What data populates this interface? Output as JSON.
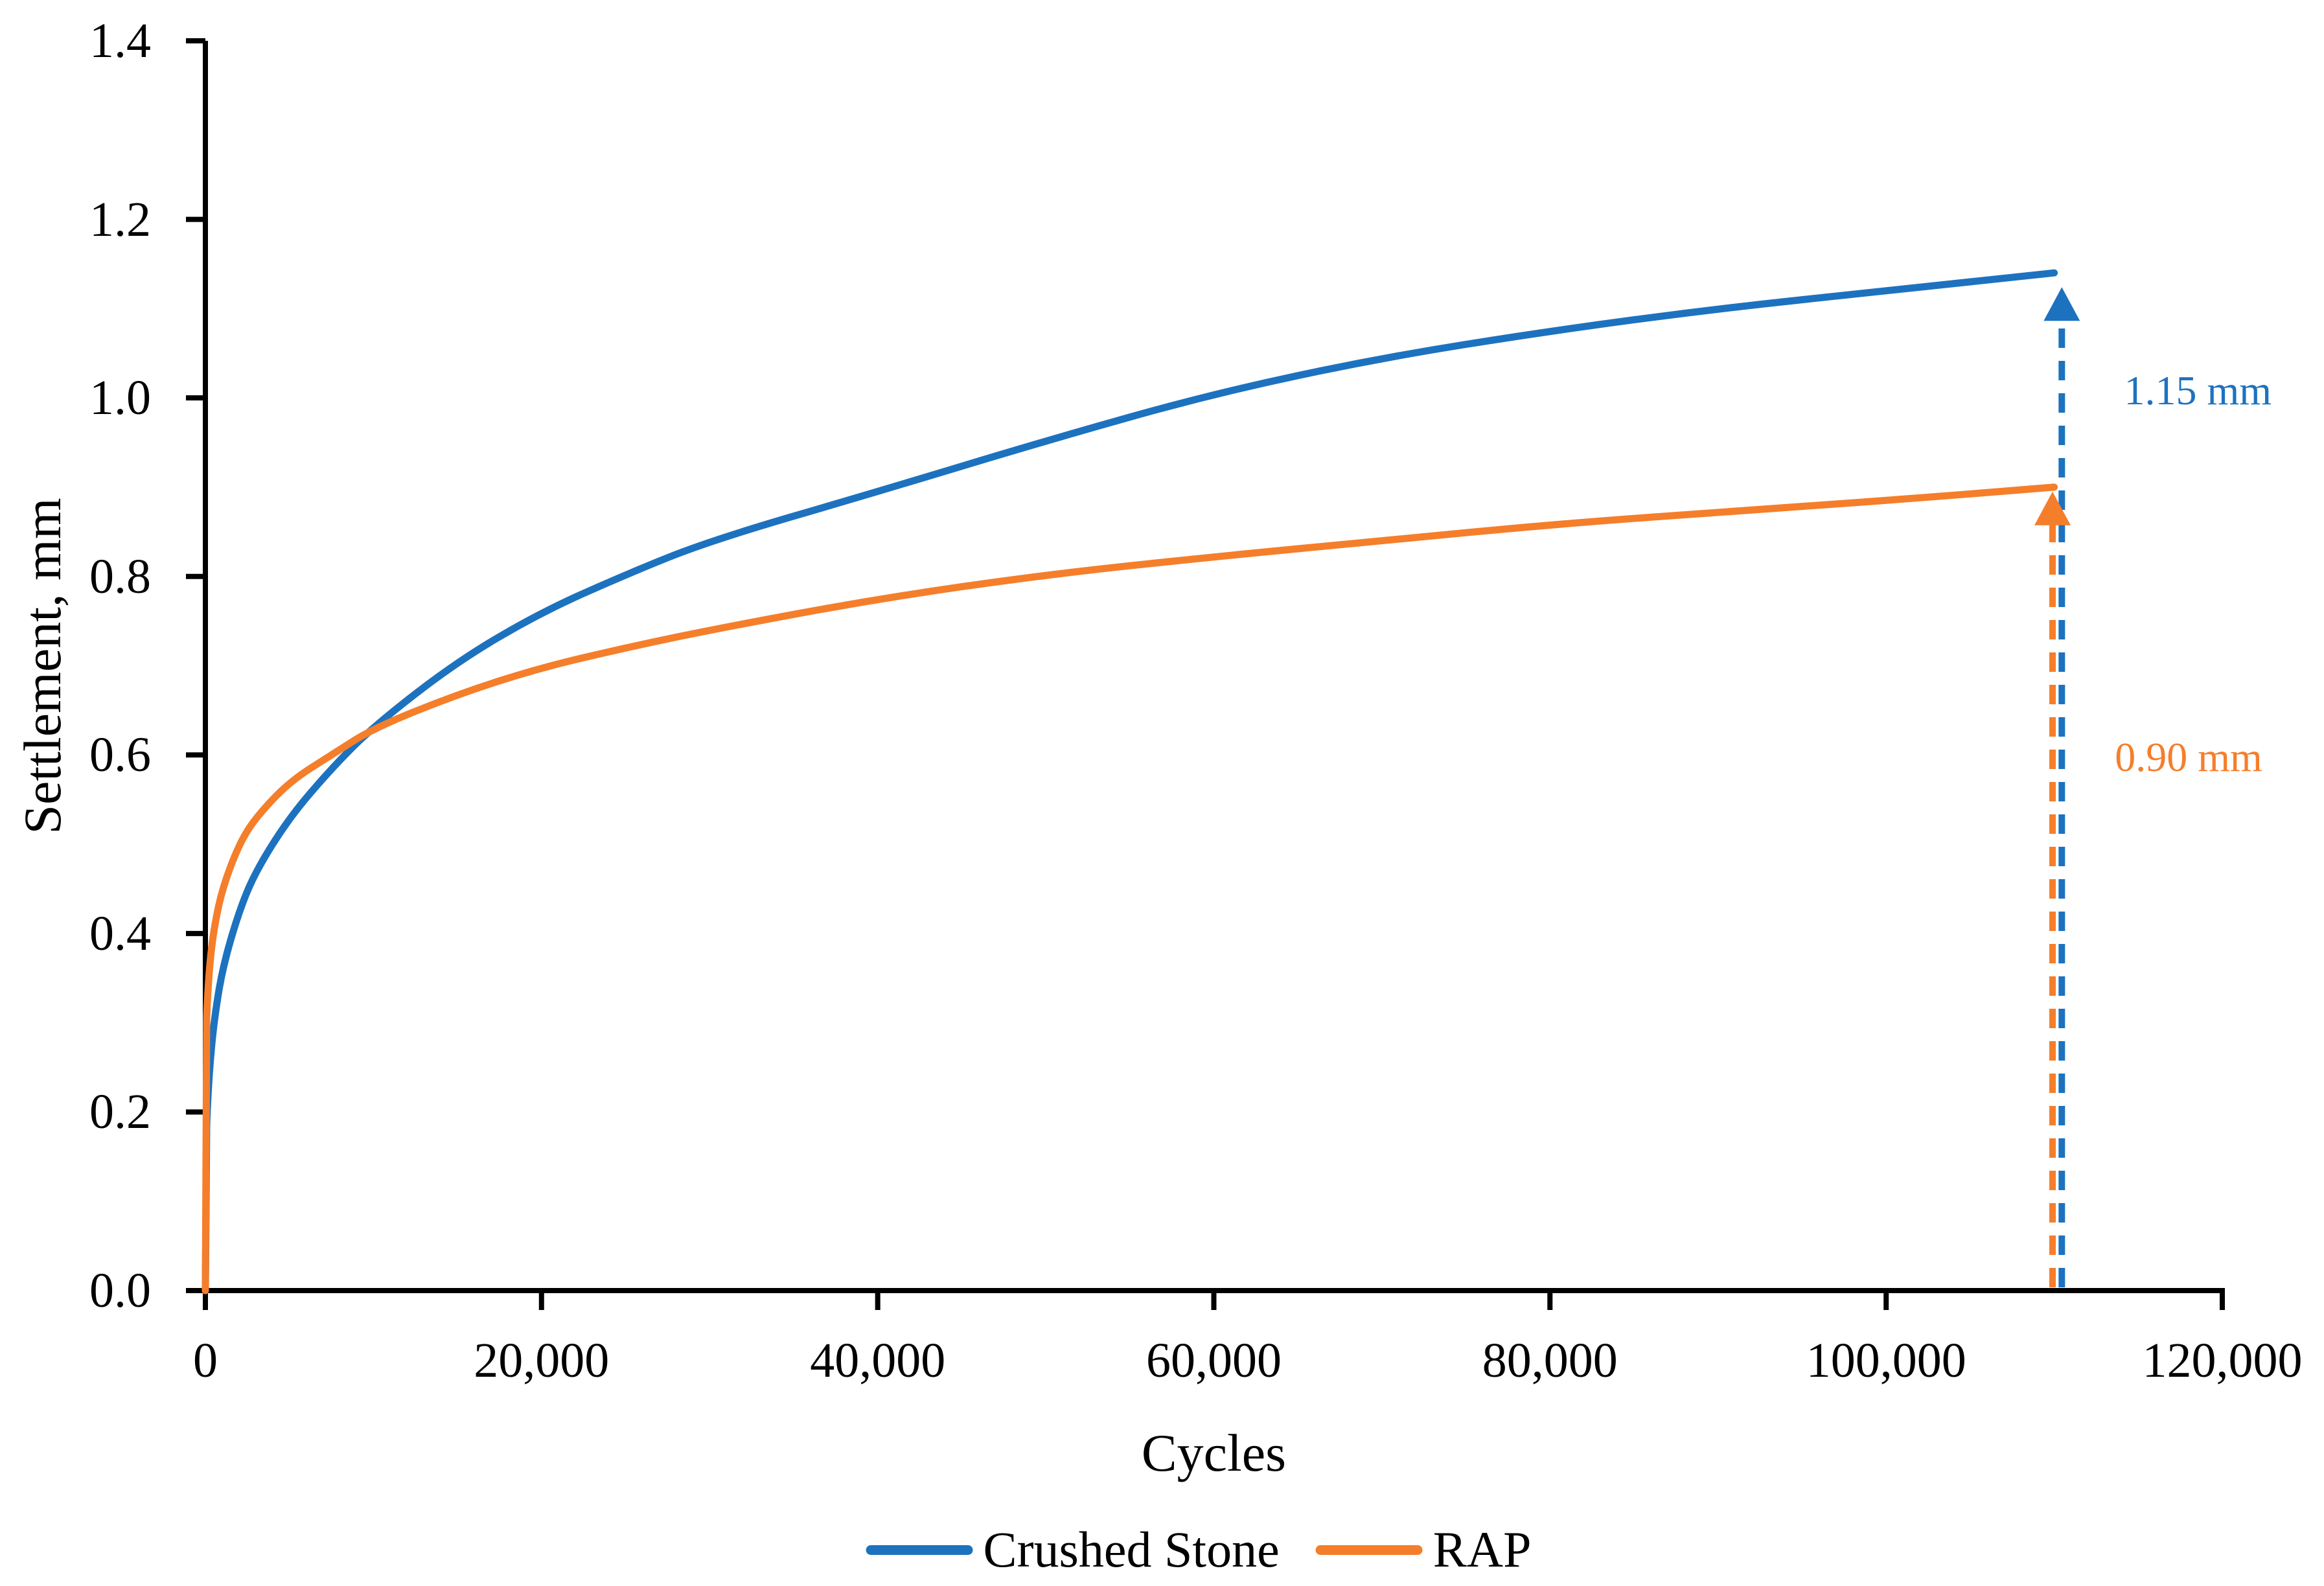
{
  "chart_data": {
    "type": "line",
    "title": "",
    "xlabel": "Cycles",
    "ylabel": "Settlement, mm",
    "xlim": [
      0,
      120000
    ],
    "ylim": [
      0,
      1.4
    ],
    "grid": false,
    "legend_position": "bottom-center",
    "background_color": "#ffffff",
    "axis_color": "#000000",
    "x_ticks": [
      {
        "v": 0,
        "label": "0"
      },
      {
        "v": 20000,
        "label": "20,000"
      },
      {
        "v": 40000,
        "label": "40,000"
      },
      {
        "v": 60000,
        "label": "60,000"
      },
      {
        "v": 80000,
        "label": "80,000"
      },
      {
        "v": 100000,
        "label": "100,000"
      },
      {
        "v": 120000,
        "label": "120,000"
      }
    ],
    "y_ticks": [
      {
        "v": 0.0,
        "label": "0.0"
      },
      {
        "v": 0.2,
        "label": "0.2"
      },
      {
        "v": 0.4,
        "label": "0.4"
      },
      {
        "v": 0.6,
        "label": "0.6"
      },
      {
        "v": 0.8,
        "label": "0.8"
      },
      {
        "v": 1.0,
        "label": "1.0"
      },
      {
        "v": 1.2,
        "label": "1.2"
      },
      {
        "v": 1.4,
        "label": "1.4"
      }
    ],
    "series": [
      {
        "name": "Crushed Stone",
        "color": "#1D72BF",
        "final_value_mm": 1.15,
        "points": [
          [
            0,
            0
          ],
          [
            50,
            0.17
          ],
          [
            100,
            0.2
          ],
          [
            250,
            0.25
          ],
          [
            500,
            0.3
          ],
          [
            1000,
            0.36
          ],
          [
            2000,
            0.425
          ],
          [
            3000,
            0.47
          ],
          [
            5000,
            0.53
          ],
          [
            7500,
            0.585
          ],
          [
            10000,
            0.632
          ],
          [
            15000,
            0.705
          ],
          [
            20000,
            0.76
          ],
          [
            25000,
            0.802
          ],
          [
            30000,
            0.84
          ],
          [
            40000,
            0.895
          ],
          [
            50000,
            0.952
          ],
          [
            60000,
            1.005
          ],
          [
            70000,
            1.045
          ],
          [
            80000,
            1.075
          ],
          [
            90000,
            1.1
          ],
          [
            100000,
            1.12
          ],
          [
            110000,
            1.14
          ]
        ]
      },
      {
        "name": "RAP",
        "color": "#F57E2B",
        "final_value_mm": 0.9,
        "points": [
          [
            0,
            0
          ],
          [
            50,
            0.29
          ],
          [
            100,
            0.32
          ],
          [
            250,
            0.365
          ],
          [
            500,
            0.405
          ],
          [
            1000,
            0.45
          ],
          [
            2000,
            0.5
          ],
          [
            3000,
            0.53
          ],
          [
            5000,
            0.57
          ],
          [
            7500,
            0.6
          ],
          [
            10000,
            0.63
          ],
          [
            15000,
            0.668
          ],
          [
            20000,
            0.698
          ],
          [
            25000,
            0.72
          ],
          [
            30000,
            0.74
          ],
          [
            40000,
            0.775
          ],
          [
            50000,
            0.802
          ],
          [
            60000,
            0.822
          ],
          [
            70000,
            0.84
          ],
          [
            80000,
            0.858
          ],
          [
            90000,
            0.872
          ],
          [
            100000,
            0.885
          ],
          [
            110000,
            0.9
          ]
        ]
      }
    ],
    "annotations": [
      {
        "label": "1.15 mm",
        "color": "#1D72BF",
        "x_cycles": 110450,
        "tip_mm": 1.124,
        "label_mm": 1.008
      },
      {
        "label": "0.90 mm",
        "color": "#F57E2B",
        "x_cycles": 109900,
        "tip_mm": 0.895,
        "label_mm": 0.597
      }
    ]
  }
}
